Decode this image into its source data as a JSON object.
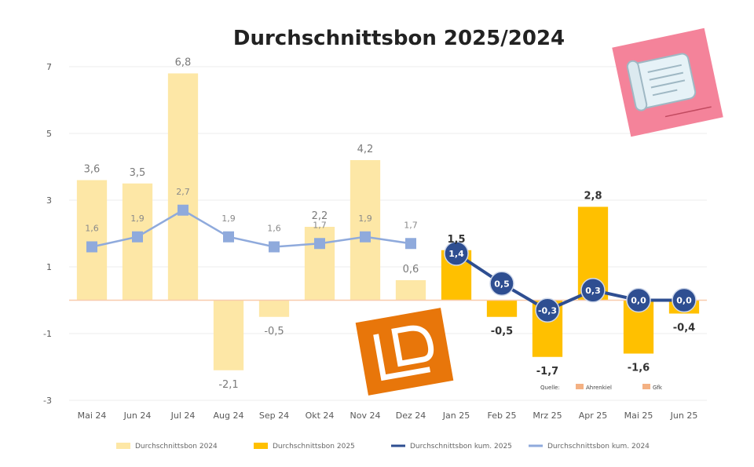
{
  "chart_data": {
    "type": "bar",
    "title": "Durchschnittsbon 2025/2024",
    "categories": [
      "Mai 24",
      "Jun 24",
      "Jul 24",
      "Aug 24",
      "Sep 24",
      "Okt 24",
      "Nov 24",
      "Dez 24",
      "Jan 25",
      "Feb 25",
      "Mrz 25",
      "Apr 25",
      "Mai 25",
      "Jun 25"
    ],
    "ylim": [
      -3,
      7
    ],
    "yticks": [
      "7",
      "5",
      "3",
      "1",
      "-1",
      "-3"
    ],
    "series": [
      {
        "name": "Durchschnittsbon 2024",
        "kind": "bar",
        "color": "#fde7a6",
        "values": [
          3.6,
          3.5,
          6.8,
          -2.1,
          -0.5,
          2.2,
          4.2,
          0.6,
          null,
          null,
          null,
          null,
          null,
          null
        ],
        "labels": [
          "3,6",
          "3,5",
          "6,8",
          "-2,1",
          "-0,5",
          "2,2",
          "4,2",
          "0,6",
          "",
          "",
          "",
          "",
          "",
          ""
        ]
      },
      {
        "name": "Durchschnittsbon 2025",
        "kind": "bar",
        "color": "#ffc000",
        "values": [
          null,
          null,
          null,
          null,
          null,
          null,
          null,
          null,
          1.5,
          -0.5,
          -1.7,
          2.8,
          -1.6,
          -0.4
        ],
        "labels": [
          "",
          "",
          "",
          "",
          "",
          "",
          "",
          "",
          "1,5",
          "-0,5",
          "-1,7",
          "2,8",
          "-1,6",
          "-0,4"
        ]
      },
      {
        "name": "Durchschnittsbon kum. 2025",
        "kind": "line",
        "color": "#2e4e91",
        "values": [
          null,
          null,
          null,
          null,
          null,
          null,
          null,
          null,
          1.4,
          0.5,
          -0.3,
          0.3,
          0.0,
          0.0
        ],
        "labels": [
          "",
          "",
          "",
          "",
          "",
          "",
          "",
          "",
          "1,4",
          "0,5",
          "-0,3",
          "0,3",
          "0,0",
          "0,0"
        ]
      },
      {
        "name": "Durchschnittsbon kum. 2024",
        "kind": "line",
        "color": "#8faadc",
        "values": [
          1.6,
          1.9,
          2.7,
          1.9,
          1.6,
          1.7,
          1.9,
          1.7,
          null,
          null,
          null,
          null,
          null,
          null
        ],
        "labels": [
          "1,6",
          "1,9",
          "2,7",
          "1,9",
          "1,6",
          "1,7",
          "1,9",
          "1,7",
          "",
          "",
          "",
          "",
          "",
          ""
        ]
      }
    ],
    "legend_position": "bottom",
    "grid": true
  },
  "source_note": [
    "Quelle:",
    "Ahrenkiel",
    "Gfk"
  ],
  "icons": {
    "receipt": "receipt-icon",
    "logo": "ld-logo"
  }
}
